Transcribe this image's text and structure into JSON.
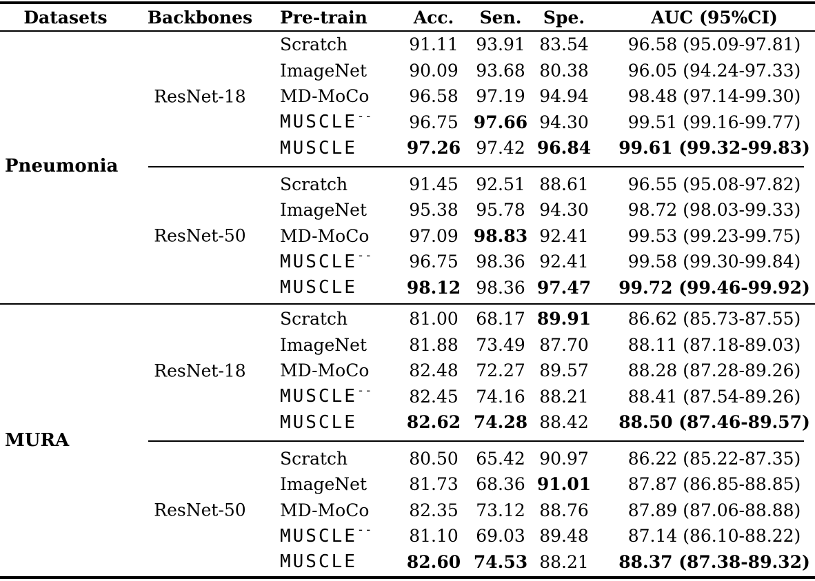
{
  "table": {
    "columns": {
      "datasets": "Datasets",
      "backbones": "Backbones",
      "pretrain": "Pre-train",
      "acc": "Acc.",
      "sen": "Sen.",
      "spe": "Spe.",
      "auc": "AUC (95%CI)"
    },
    "sections": [
      {
        "dataset": "Pneumonia",
        "groups": [
          {
            "backbone": "ResNet-18",
            "rows": [
              {
                "pretrain": "Scratch",
                "tt": false,
                "sup": "",
                "acc": "91.11",
                "sen": "93.91",
                "spe": "83.54",
                "auc": "96.58 (95.09-97.81)",
                "bold": []
              },
              {
                "pretrain": "ImageNet",
                "tt": false,
                "sup": "",
                "acc": "90.09",
                "sen": "93.68",
                "spe": "80.38",
                "auc": "96.05 (94.24-97.33)",
                "bold": []
              },
              {
                "pretrain": "MD-MoCo",
                "tt": false,
                "sup": "",
                "acc": "96.58",
                "sen": "97.19",
                "spe": "94.94",
                "auc": "98.48 (97.14-99.30)",
                "bold": []
              },
              {
                "pretrain": "MUSCLE",
                "tt": true,
                "sup": "--",
                "acc": "96.75",
                "sen": "97.66",
                "spe": "94.30",
                "auc": "99.51 (99.16-99.77)",
                "bold": [
                  "sen"
                ]
              },
              {
                "pretrain": "MUSCLE",
                "tt": true,
                "sup": "",
                "acc": "97.26",
                "sen": "97.42",
                "spe": "96.84",
                "auc": "99.61 (99.32-99.83)",
                "bold": [
                  "acc",
                  "spe",
                  "auc"
                ]
              }
            ]
          },
          {
            "backbone": "ResNet-50",
            "rows": [
              {
                "pretrain": "Scratch",
                "tt": false,
                "sup": "",
                "acc": "91.45",
                "sen": "92.51",
                "spe": "88.61",
                "auc": "96.55 (95.08-97.82)",
                "bold": []
              },
              {
                "pretrain": "ImageNet",
                "tt": false,
                "sup": "",
                "acc": "95.38",
                "sen": "95.78",
                "spe": "94.30",
                "auc": "98.72 (98.03-99.33)",
                "bold": []
              },
              {
                "pretrain": "MD-MoCo",
                "tt": false,
                "sup": "",
                "acc": "97.09",
                "sen": "98.83",
                "spe": "92.41",
                "auc": "99.53 (99.23-99.75)",
                "bold": [
                  "sen"
                ]
              },
              {
                "pretrain": "MUSCLE",
                "tt": true,
                "sup": "--",
                "acc": "96.75",
                "sen": "98.36",
                "spe": "92.41",
                "auc": "99.58 (99.30-99.84)",
                "bold": []
              },
              {
                "pretrain": "MUSCLE",
                "tt": true,
                "sup": "",
                "acc": "98.12",
                "sen": "98.36",
                "spe": "97.47",
                "auc": "99.72 (99.46-99.92)",
                "bold": [
                  "acc",
                  "spe",
                  "auc"
                ]
              }
            ]
          }
        ]
      },
      {
        "dataset": "MURA",
        "groups": [
          {
            "backbone": "ResNet-18",
            "rows": [
              {
                "pretrain": "Scratch",
                "tt": false,
                "sup": "",
                "acc": "81.00",
                "sen": "68.17",
                "spe": "89.91",
                "auc": "86.62 (85.73-87.55)",
                "bold": [
                  "spe"
                ]
              },
              {
                "pretrain": "ImageNet",
                "tt": false,
                "sup": "",
                "acc": "81.88",
                "sen": "73.49",
                "spe": "87.70",
                "auc": "88.11 (87.18-89.03)",
                "bold": []
              },
              {
                "pretrain": "MD-MoCo",
                "tt": false,
                "sup": "",
                "acc": "82.48",
                "sen": "72.27",
                "spe": "89.57",
                "auc": "88.28 (87.28-89.26)",
                "bold": []
              },
              {
                "pretrain": "MUSCLE",
                "tt": true,
                "sup": "--",
                "acc": "82.45",
                "sen": "74.16",
                "spe": "88.21",
                "auc": "88.41 (87.54-89.26)",
                "bold": []
              },
              {
                "pretrain": "MUSCLE",
                "tt": true,
                "sup": "",
                "acc": "82.62",
                "sen": "74.28",
                "spe": "88.42",
                "auc": "88.50 (87.46-89.57)",
                "bold": [
                  "acc",
                  "sen",
                  "auc"
                ]
              }
            ]
          },
          {
            "backbone": "ResNet-50",
            "rows": [
              {
                "pretrain": "Scratch",
                "tt": false,
                "sup": "",
                "acc": "80.50",
                "sen": "65.42",
                "spe": "90.97",
                "auc": "86.22 (85.22-87.35)",
                "bold": []
              },
              {
                "pretrain": "ImageNet",
                "tt": false,
                "sup": "",
                "acc": "81.73",
                "sen": "68.36",
                "spe": "91.01",
                "auc": "87.87 (86.85-88.85)",
                "bold": [
                  "spe"
                ]
              },
              {
                "pretrain": "MD-MoCo",
                "tt": false,
                "sup": "",
                "acc": "82.35",
                "sen": "73.12",
                "spe": "88.76",
                "auc": "87.89 (87.06-88.88)",
                "bold": []
              },
              {
                "pretrain": "MUSCLE",
                "tt": true,
                "sup": "--",
                "acc": "81.10",
                "sen": "69.03",
                "spe": "89.48",
                "auc": "87.14 (86.10-88.22)",
                "bold": []
              },
              {
                "pretrain": "MUSCLE",
                "tt": true,
                "sup": "",
                "acc": "82.60",
                "sen": "74.53",
                "spe": "88.21",
                "auc": "88.37 (87.38-89.32)",
                "bold": [
                  "acc",
                  "sen",
                  "auc"
                ]
              }
            ]
          }
        ]
      }
    ]
  }
}
